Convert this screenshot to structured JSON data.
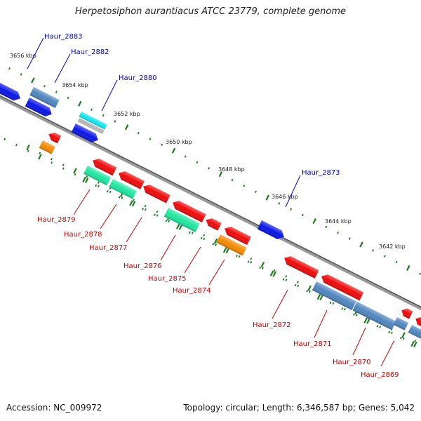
{
  "title": "Herpetosiphon aurantiacus ATCC 23779, complete genome",
  "footer": {
    "accession": "Accession: NC_009972",
    "summary": "Topology: circular; Length: 6,346,587 bp; Genes: 5,042"
  },
  "colors": {
    "backbone": "#777777",
    "forward_label": "#0000cc",
    "reverse_label": "#cc0000",
    "tick": "#1f7a1f",
    "blue": "#0a16e6",
    "steel": "#4f86c0",
    "cyan": "#12e6f0",
    "gray": "#b8b8b8",
    "red": "#f00a0a",
    "green": "#1ee8a0",
    "orange": "#f58a00"
  },
  "scale": {
    "kbp_labels": [
      "3656 kbp",
      "3654 kbp",
      "3652 kbp",
      "3650 kbp",
      "3648 kbp",
      "3646 kbp",
      "3644 kbp",
      "3642 kbp"
    ]
  },
  "gene_labels": {
    "forward": [
      "Haur_2883",
      "Haur_2882",
      "Haur_2880",
      "Haur_2873"
    ],
    "reverse": [
      "Haur_2879",
      "Haur_2878",
      "Haur_2877",
      "Haur_2876",
      "Haur_2875",
      "Haur_2874",
      "Haur_2872",
      "Haur_2871",
      "Haur_2870",
      "Haur_2869"
    ]
  }
}
